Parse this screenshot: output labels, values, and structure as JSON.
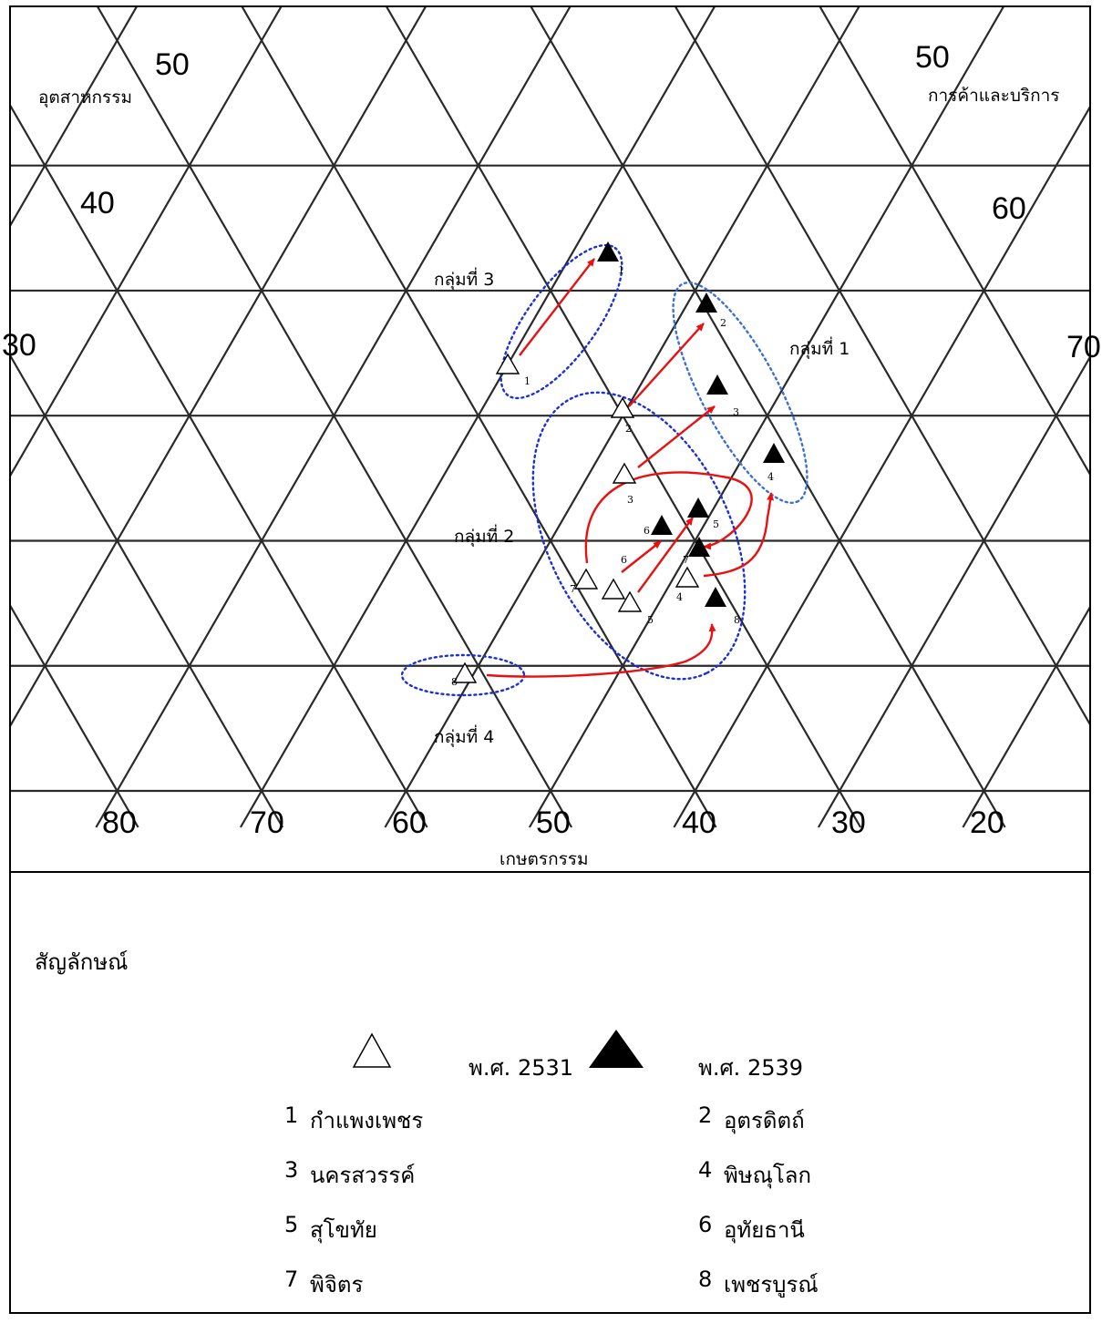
{
  "chart_data": {
    "type": "ternary-scatter",
    "axes": {
      "agriculture": {
        "label": "เกษตรกรรม",
        "ticks": [
          "80",
          "70",
          "60",
          "50",
          "40",
          "30",
          "20"
        ]
      },
      "industry": {
        "label": "อุตสาหกรรม",
        "ticks": [
          "30",
          "40",
          "50"
        ]
      },
      "commerce": {
        "label": "การค้าและบริการ",
        "ticks": [
          "50",
          "60",
          "70"
        ]
      }
    },
    "series": [
      {
        "name": "พ.ศ. 2531",
        "marker": "open-triangle",
        "points": [
          {
            "id": "1",
            "agriculture": 53,
            "industry": 29
          },
          {
            "id": "2",
            "agriculture": 46,
            "industry": 27
          },
          {
            "id": "3",
            "agriculture": 47,
            "industry": 23
          },
          {
            "id": "4",
            "agriculture": 40,
            "industry": 17
          },
          {
            "id": "5",
            "agriculture": 48,
            "industry": 15
          },
          {
            "id": "6",
            "agriculture": 49,
            "industry": 16
          },
          {
            "id": "7",
            "agriculture": 51,
            "industry": 17
          },
          {
            "id": "8",
            "agriculture": 61,
            "industry": 9
          }
        ]
      },
      {
        "name": "พ.ศ. 2539",
        "marker": "filled-triangle",
        "points": [
          {
            "id": "1",
            "agriculture": 39,
            "industry": 38
          },
          {
            "id": "2",
            "agriculture": 32,
            "industry": 33
          },
          {
            "id": "3",
            "agriculture": 33,
            "industry": 26
          },
          {
            "id": "4",
            "agriculture": 31,
            "industry": 23
          },
          {
            "id": "5",
            "agriculture": 38,
            "industry": 22
          },
          {
            "id": "6",
            "agriculture": 42,
            "industry": 20
          },
          {
            "id": "7",
            "agriculture": 39,
            "industry": 19
          },
          {
            "id": "8",
            "agriculture": 39,
            "industry": 15
          }
        ]
      }
    ],
    "groups": [
      {
        "label": "กลุ่มที่ 1",
        "members": [
          "2",
          "3",
          "4"
        ]
      },
      {
        "label": "กลุ่มที่ 2",
        "members": [
          "2",
          "3",
          "4",
          "5",
          "6",
          "7"
        ]
      },
      {
        "label": "กลุ่มที่ 3",
        "members": [
          "1"
        ]
      },
      {
        "label": "กลุ่มที่ 4",
        "members": [
          "8"
        ]
      }
    ]
  },
  "legend": {
    "title": "สัญลักษณ์",
    "year_open": "พ.ศ. 2531",
    "year_filled": "พ.ศ. 2539",
    "provinces": [
      {
        "num": "1",
        "name": "กำแพงเพชร"
      },
      {
        "num": "2",
        "name": "อุตรดิตถ์"
      },
      {
        "num": "3",
        "name": "นครสวรรค์"
      },
      {
        "num": "4",
        "name": "พิษณุโลก"
      },
      {
        "num": "5",
        "name": "สุโขทัย"
      },
      {
        "num": "6",
        "name": "อุทัยธานี"
      },
      {
        "num": "7",
        "name": "พิจิตร"
      },
      {
        "num": "8",
        "name": "เพชรบูรณ์"
      }
    ]
  },
  "colors": {
    "arrow": "#e81010",
    "group_outline": "#1a2fd6",
    "group1_outline": "#3a6fd8",
    "grid": "#2a2a2a"
  }
}
